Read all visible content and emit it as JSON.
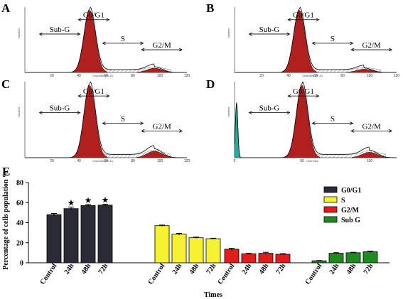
{
  "histogram_panels": [
    {
      "letter": "A",
      "region_labels": [
        "Sub-G",
        "G0/G1",
        "S",
        "G2/M"
      ],
      "x_axis_label": "Channels (PI-A)",
      "y_axis_label": "Number",
      "x_ticks": [
        "20",
        "40",
        "60",
        "80",
        "100",
        "120"
      ]
    },
    {
      "letter": "B",
      "region_labels": [
        "Sub-G",
        "G0/G1",
        "S",
        "G2/M"
      ],
      "x_axis_label": "Channels (PI-A)",
      "y_axis_label": "Number",
      "x_ticks": [
        "20",
        "40",
        "60",
        "80",
        "100",
        "120"
      ]
    },
    {
      "letter": "C",
      "region_labels": [
        "Sub-G",
        "G0/G1",
        "S",
        "G2/M"
      ],
      "x_axis_label": "Channels (PI-A)",
      "y_axis_label": "Number",
      "x_ticks": [
        "20",
        "40",
        "60",
        "80",
        "100",
        "120"
      ]
    },
    {
      "letter": "D",
      "region_labels": [
        "Sub-G",
        "G0/G1",
        "S",
        "G2/M"
      ],
      "x_axis_label": "Channels",
      "y_axis_label": "Number",
      "x_ticks": [
        "0",
        "50",
        "100"
      ]
    }
  ],
  "bar_panel": {
    "letter": "E"
  },
  "colors": {
    "histogram_fill": "#b0201e",
    "histogram_edge": "#5a0f0e",
    "subg_fill": "#2aa89a",
    "hatch": "#555555",
    "G0/G1": "#2b2b38",
    "S": "#f6f232",
    "G2/M": "#e41b1b",
    "Sub G": "#1f8a1f"
  },
  "chart_data": [
    {
      "type": "area",
      "panel": "A",
      "xlabel": "Channels (PI-A)",
      "ylabel": "Number",
      "xlim": [
        0,
        120
      ],
      "regions": [
        "Sub-G",
        "G0/G1",
        "S",
        "G2/M"
      ],
      "peaks": [
        {
          "phase": "G0/G1",
          "channel": 48,
          "height": 1.0
        },
        {
          "phase": "G2/M",
          "channel": 96,
          "height": 0.09
        }
      ],
      "subg_height": 0.0
    },
    {
      "type": "area",
      "panel": "B",
      "xlabel": "Channels (PI-A)",
      "ylabel": "Number",
      "xlim": [
        0,
        120
      ],
      "regions": [
        "Sub-G",
        "G0/G1",
        "S",
        "G2/M"
      ],
      "peaks": [
        {
          "phase": "G0/G1",
          "channel": 48,
          "height": 1.0
        },
        {
          "phase": "G2/M",
          "channel": 96,
          "height": 0.07
        }
      ],
      "subg_height": 0.0
    },
    {
      "type": "area",
      "panel": "C",
      "xlabel": "Channels (PI-A)",
      "ylabel": "Number",
      "xlim": [
        0,
        120
      ],
      "regions": [
        "Sub-G",
        "G0/G1",
        "S",
        "G2/M"
      ],
      "peaks": [
        {
          "phase": "G0/G1",
          "channel": 48,
          "height": 1.0
        },
        {
          "phase": "G2/M",
          "channel": 96,
          "height": 0.12
        }
      ],
      "subg_height": 0.0
    },
    {
      "type": "area",
      "panel": "D",
      "xlabel": "Channels",
      "ylabel": "Number",
      "xlim": [
        0,
        120
      ],
      "regions": [
        "Sub-G",
        "G0/G1",
        "S",
        "G2/M"
      ],
      "peaks": [
        {
          "phase": "G0/G1",
          "channel": 50,
          "height": 1.0
        },
        {
          "phase": "G2/M",
          "channel": 100,
          "height": 0.1
        }
      ],
      "subg_height": 0.75
    },
    {
      "type": "bar",
      "panel": "E",
      "xlabel": "Times",
      "ylabel": "Percentage of cells population %",
      "ylim": [
        0,
        80
      ],
      "yticks": [
        0,
        20,
        40,
        60,
        80
      ],
      "grouped_by": "phase",
      "groups": [
        {
          "name": "G0/G1",
          "color": "#2b2b38",
          "categories": [
            "Control",
            "24h",
            "48h",
            "72h"
          ],
          "values": [
            48,
            54,
            57,
            57.5
          ],
          "errors": [
            1.2,
            1.5,
            1.2,
            0.8
          ],
          "significant": [
            false,
            true,
            true,
            true
          ]
        },
        {
          "name": "S",
          "color": "#f6f232",
          "categories": [
            "Control",
            "24h",
            "48h",
            "72h"
          ],
          "values": [
            37,
            28.5,
            25,
            24
          ],
          "errors": [
            0.6,
            0.9,
            0.6,
            0.5
          ],
          "significant": [
            false,
            false,
            false,
            false
          ]
        },
        {
          "name": "G2/M",
          "color": "#e41b1b",
          "categories": [
            "Control",
            "24h",
            "48h",
            "72h"
          ],
          "values": [
            13.5,
            9,
            9.5,
            8.5
          ],
          "errors": [
            1.0,
            0.5,
            1.0,
            0.6
          ],
          "significant": [
            false,
            false,
            false,
            false
          ]
        },
        {
          "name": "Sub G",
          "color": "#1f8a1f",
          "categories": [
            "Control",
            "24h",
            "48h",
            "72h"
          ],
          "values": [
            2,
            9.5,
            10,
            11
          ],
          "errors": [
            0.3,
            0.6,
            0.5,
            0.6
          ],
          "significant": [
            false,
            false,
            false,
            false
          ]
        }
      ],
      "legend": [
        "G0/G1",
        "S",
        "G2/M",
        "Sub G"
      ],
      "legend_position": "top-right",
      "significance_marker": "★"
    }
  ]
}
